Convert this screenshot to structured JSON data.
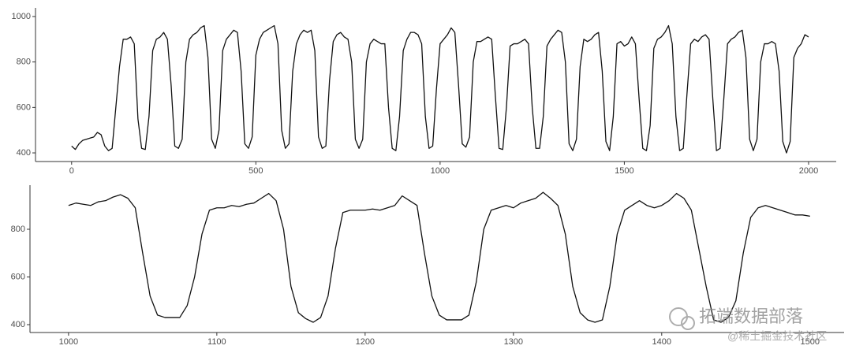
{
  "chart_data": [
    {
      "type": "line",
      "x": [
        0,
        10,
        20,
        30,
        40,
        50,
        60,
        70,
        80,
        90,
        100,
        110,
        120,
        130,
        140,
        150,
        160,
        170,
        180,
        190,
        200,
        210,
        220,
        230,
        240,
        250,
        260,
        270,
        280,
        290,
        300,
        310,
        320,
        330,
        340,
        350,
        360,
        370,
        380,
        390,
        400,
        410,
        420,
        430,
        440,
        450,
        460,
        470,
        480,
        490,
        500,
        510,
        520,
        530,
        540,
        550,
        560,
        570,
        580,
        590,
        600,
        610,
        620,
        630,
        640,
        650,
        660,
        670,
        680,
        690,
        700,
        710,
        720,
        730,
        740,
        750,
        760,
        770,
        780,
        790,
        800,
        810,
        820,
        830,
        840,
        850,
        860,
        870,
        880,
        890,
        900,
        910,
        920,
        930,
        940,
        950,
        960,
        970,
        980,
        990,
        1000,
        1010,
        1020,
        1030,
        1040,
        1050,
        1060,
        1070,
        1080,
        1090,
        1100,
        1110,
        1120,
        1130,
        1140,
        1150,
        1160,
        1170,
        1180,
        1190,
        1200,
        1210,
        1220,
        1230,
        1240,
        1250,
        1260,
        1270,
        1280,
        1290,
        1300,
        1310,
        1320,
        1330,
        1340,
        1350,
        1360,
        1370,
        1380,
        1390,
        1400,
        1410,
        1420,
        1430,
        1440,
        1450,
        1460,
        1470,
        1480,
        1490,
        1500,
        1510,
        1520,
        1530,
        1540,
        1550,
        1560,
        1570,
        1580,
        1590,
        1600,
        1610,
        1620,
        1630,
        1640,
        1650,
        1660,
        1670,
        1680,
        1690,
        1700,
        1710,
        1720,
        1730,
        1740,
        1750,
        1760,
        1770,
        1780,
        1790,
        1800,
        1810,
        1820,
        1830,
        1840,
        1850,
        1860,
        1870,
        1880,
        1890,
        1900,
        1910,
        1920,
        1930,
        1940,
        1950,
        1960,
        1970,
        1980,
        1990,
        2000
      ],
      "values": [
        430,
        415,
        440,
        455,
        460,
        465,
        470,
        490,
        480,
        430,
        410,
        420,
        600,
        780,
        900,
        900,
        910,
        880,
        550,
        420,
        415,
        560,
        850,
        900,
        910,
        930,
        900,
        700,
        430,
        420,
        460,
        800,
        900,
        920,
        930,
        950,
        960,
        820,
        460,
        420,
        500,
        850,
        900,
        920,
        940,
        930,
        760,
        440,
        420,
        470,
        830,
        900,
        930,
        940,
        950,
        960,
        880,
        500,
        420,
        440,
        760,
        880,
        920,
        940,
        930,
        940,
        850,
        470,
        420,
        430,
        720,
        890,
        920,
        930,
        910,
        900,
        800,
        460,
        420,
        460,
        800,
        880,
        900,
        890,
        880,
        880,
        600,
        420,
        410,
        560,
        850,
        900,
        930,
        930,
        920,
        880,
        560,
        420,
        430,
        680,
        880,
        900,
        920,
        950,
        930,
        700,
        440,
        425,
        470,
        800,
        890,
        890,
        900,
        910,
        900,
        650,
        420,
        415,
        600,
        870,
        880,
        880,
        890,
        900,
        880,
        600,
        420,
        420,
        560,
        870,
        900,
        920,
        940,
        930,
        800,
        440,
        410,
        460,
        780,
        900,
        890,
        900,
        920,
        930,
        760,
        450,
        410,
        560,
        880,
        890,
        870,
        880,
        910,
        880,
        640,
        420,
        410,
        520,
        860,
        900,
        910,
        930,
        960,
        880,
        560,
        410,
        420,
        660,
        880,
        900,
        890,
        910,
        920,
        900,
        640,
        410,
        420,
        640,
        880,
        900,
        910,
        930,
        940,
        820,
        460,
        410,
        460,
        800,
        880,
        880,
        890,
        880,
        760,
        450,
        400,
        450,
        820,
        860,
        880,
        920,
        910
      ],
      "color": "#111111",
      "xlim": [
        -98,
        2075
      ],
      "ylim": [
        362,
        1038
      ],
      "xticks": [
        0,
        500,
        1000,
        1500,
        2000
      ],
      "yticks": [
        400,
        600,
        800,
        1000
      ]
    },
    {
      "type": "line",
      "x": [
        1000,
        1005,
        1010,
        1015,
        1020,
        1025,
        1030,
        1035,
        1040,
        1045,
        1050,
        1055,
        1060,
        1065,
        1070,
        1075,
        1080,
        1085,
        1090,
        1095,
        1100,
        1105,
        1110,
        1115,
        1120,
        1125,
        1130,
        1135,
        1140,
        1145,
        1150,
        1155,
        1160,
        1165,
        1170,
        1175,
        1180,
        1185,
        1190,
        1195,
        1200,
        1205,
        1210,
        1215,
        1220,
        1225,
        1230,
        1235,
        1240,
        1245,
        1250,
        1255,
        1260,
        1265,
        1270,
        1275,
        1280,
        1285,
        1290,
        1295,
        1300,
        1305,
        1310,
        1315,
        1320,
        1325,
        1330,
        1335,
        1340,
        1345,
        1350,
        1355,
        1360,
        1365,
        1370,
        1375,
        1380,
        1385,
        1390,
        1395,
        1400,
        1405,
        1410,
        1415,
        1420,
        1425,
        1430,
        1435,
        1440,
        1445,
        1450,
        1455,
        1460,
        1465,
        1470,
        1475,
        1480,
        1485,
        1490,
        1495,
        1500
      ],
      "values": [
        900,
        910,
        905,
        900,
        915,
        920,
        935,
        945,
        930,
        890,
        700,
        520,
        440,
        430,
        430,
        430,
        480,
        600,
        780,
        880,
        890,
        890,
        900,
        895,
        905,
        910,
        930,
        950,
        920,
        800,
        560,
        450,
        425,
        410,
        430,
        520,
        720,
        870,
        880,
        880,
        880,
        885,
        880,
        890,
        900,
        940,
        920,
        900,
        700,
        520,
        440,
        420,
        420,
        420,
        440,
        580,
        800,
        880,
        890,
        900,
        890,
        910,
        920,
        930,
        955,
        930,
        900,
        780,
        560,
        450,
        420,
        410,
        420,
        560,
        780,
        880,
        900,
        920,
        900,
        890,
        900,
        920,
        950,
        930,
        880,
        720,
        560,
        420,
        410,
        430,
        500,
        700,
        850,
        890,
        900,
        890,
        880,
        870,
        860,
        860,
        855
      ],
      "color": "#111111",
      "xlim": [
        974,
        1523
      ],
      "ylim": [
        367,
        985
      ],
      "xticks": [
        1000,
        1100,
        1200,
        1300,
        1400,
        1500
      ],
      "yticks": [
        400,
        600,
        800
      ]
    }
  ],
  "watermark": {
    "logo_text": "拓端数据部落",
    "credit": "@稀土掘金技术社区"
  }
}
